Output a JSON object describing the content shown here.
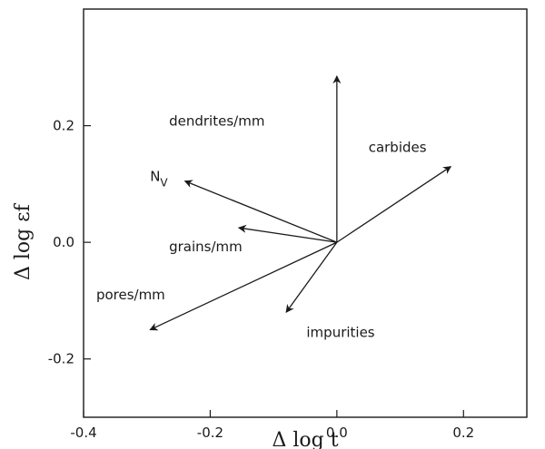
{
  "chart_data": {
    "type": "vector",
    "xlabel": "Δ log t",
    "ylabel": "Δ log εf",
    "xlim": [
      -0.4,
      0.3
    ],
    "ylim": [
      -0.3,
      0.4
    ],
    "xticks": [
      -0.4,
      -0.2,
      0.0,
      0.2
    ],
    "xtick_labels": [
      "-0.4",
      "-0.2",
      "0.0",
      "0.2"
    ],
    "yticks": [
      -0.2,
      0.0,
      0.2
    ],
    "ytick_labels": [
      "-0.2",
      "0.0",
      "0.2"
    ],
    "grid": false,
    "origin": [
      0.0,
      0.0
    ],
    "vectors": [
      {
        "label": "dendrites/mm",
        "dx": 0.0,
        "dy": 0.285
      },
      {
        "label": "carbides",
        "dx": 0.18,
        "dy": 0.13
      },
      {
        "label": "NV",
        "dx": -0.24,
        "dy": 0.105
      },
      {
        "label": "grains/mm",
        "dx": -0.155,
        "dy": 0.025
      },
      {
        "label": "pores/mm",
        "dx": -0.295,
        "dy": -0.15
      },
      {
        "label": "impurities",
        "dx": -0.08,
        "dy": -0.12
      }
    ],
    "label_anchors": [
      {
        "text": "dendrites/mm",
        "x": -0.265,
        "y": 0.2
      },
      {
        "text": "carbides",
        "x": 0.05,
        "y": 0.155
      },
      {
        "text": "grains/mm",
        "x": -0.265,
        "y": -0.015
      },
      {
        "text": "pores/mm",
        "x": -0.38,
        "y": -0.098
      },
      {
        "text": "impurities",
        "x": -0.048,
        "y": -0.162
      }
    ],
    "nv_anchor": {
      "x": -0.295,
      "y": 0.105,
      "main": "N",
      "sub": "V"
    },
    "colors": {
      "line": "#1a1a1a",
      "background": "#ffffff"
    }
  }
}
